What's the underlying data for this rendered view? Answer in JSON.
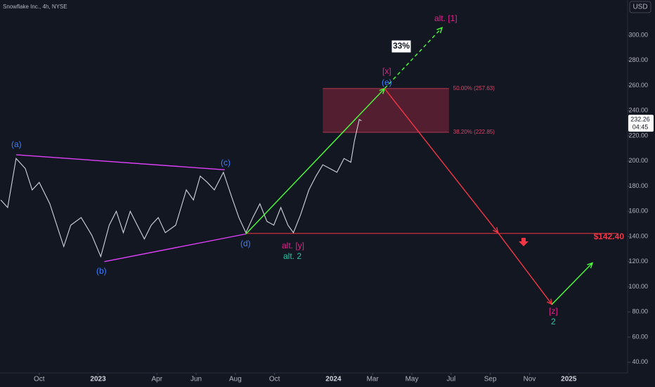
{
  "chart_data": {
    "type": "line",
    "title": "Snowflake Inc., 4h, NYSE",
    "currency": "USD",
    "color": "#d1d4dc",
    "x": [
      -1.96,
      -1.61,
      -1.18,
      -0.71,
      -0.36,
      0,
      0.54,
      1.25,
      1.61,
      2.14,
      2.68,
      3.14,
      3.57,
      3.93,
      4.29,
      4.64,
      5,
      5.36,
      5.71,
      6.07,
      6.43,
      6.96,
      7.5,
      7.86,
      8.21,
      8.57,
      8.93,
      9.39,
      9.82,
      10.18,
      10.54,
      10.89,
      11.25,
      11.61,
      11.96,
      12.32,
      12.68,
      12.96,
      13.32,
      13.75,
      14.11,
      14.46,
      14.82,
      15.18,
      15.54,
      15.89,
      16.07,
      16.32,
      16.43
    ],
    "values": [
      169,
      163,
      202,
      194,
      177,
      183,
      166,
      132,
      149,
      155,
      141,
      124,
      149,
      160,
      143,
      160,
      149,
      138,
      149,
      155,
      143,
      149,
      177,
      169,
      188,
      183,
      177,
      191,
      171,
      155,
      143,
      155,
      166,
      152,
      149,
      163,
      149,
      143,
      157,
      177,
      188,
      197,
      194,
      191,
      202,
      199,
      216,
      233,
      232
    ],
    "xlim": [
      -2,
      30
    ],
    "xticks": [
      {
        "value": 0,
        "label": "Oct"
      },
      {
        "value": 3,
        "label": "2023"
      },
      {
        "value": 6,
        "label": "Apr"
      },
      {
        "value": 8,
        "label": "Jun"
      },
      {
        "value": 10,
        "label": "Aug"
      },
      {
        "value": 12,
        "label": "Oct"
      },
      {
        "value": 15,
        "label": "2024"
      },
      {
        "value": 17,
        "label": "Mar"
      },
      {
        "value": 19,
        "label": "May"
      },
      {
        "value": 21,
        "label": "Jul"
      },
      {
        "value": 23,
        "label": "Sep"
      },
      {
        "value": 25,
        "label": "Nov"
      },
      {
        "value": 27,
        "label": "2025"
      }
    ],
    "ylim": [
      31.5,
      328
    ],
    "yticks": [
      {
        "value": 40,
        "label": "40.00"
      },
      {
        "value": 60,
        "label": "60.00"
      },
      {
        "value": 80,
        "label": "80.00"
      },
      {
        "value": 100,
        "label": "100.00"
      },
      {
        "value": 120,
        "label": "120.00"
      },
      {
        "value": 140,
        "label": "140.00"
      },
      {
        "value": 160,
        "label": "160.00"
      },
      {
        "value": 180,
        "label": "180.00"
      },
      {
        "value": 200,
        "label": "200.00"
      },
      {
        "value": 220,
        "label": "220.00"
      },
      {
        "value": 240,
        "label": "240.00"
      },
      {
        "value": 260,
        "label": "260.00"
      },
      {
        "value": 280,
        "label": "280.00"
      },
      {
        "value": 300,
        "label": "300.00"
      }
    ],
    "last_price": {
      "value": 232.26,
      "label": "232.26",
      "countdown": "04:45"
    },
    "fib_zone": {
      "x": [
        14.46,
        20.89
      ],
      "color": "#6b2137",
      "levels": [
        {
          "value": 257.63,
          "label": "50.00% (257.63)"
        },
        {
          "value": 222.85,
          "label": "38.20% (222.85)"
        }
      ]
    },
    "target": {
      "value": 142.4,
      "label": "$142.40",
      "x": [
        10.54,
        29.46
      ],
      "color": "#f23645"
    },
    "waves": [
      {
        "color": "#e040fb",
        "dashed": false,
        "x": [
          -1.18,
          9.46
        ],
        "values": [
          205,
          193
        ]
      },
      {
        "color": "#e040fb",
        "dashed": false,
        "x": [
          3.32,
          10.54
        ],
        "values": [
          120,
          142
        ]
      },
      {
        "color": "#4cff3b",
        "dashed": false,
        "x": [
          10.54,
          17.61
        ],
        "values": [
          142,
          257.6
        ]
      },
      {
        "color": "#4cff3b",
        "dashed": true,
        "x": [
          17.61,
          20.54
        ],
        "values": [
          257.6,
          306
        ]
      },
      {
        "color": "#f23645",
        "dashed": false,
        "x": [
          17.61,
          23.39,
          26.14
        ],
        "values": [
          257.6,
          143,
          86
        ]
      },
      {
        "color": "#4cff3b",
        "dashed": false,
        "x": [
          26.14,
          28.21
        ],
        "values": [
          86,
          119
        ]
      }
    ],
    "labels": {
      "a": "(a)",
      "b": "(b)",
      "c": "(c)",
      "d": "(d)",
      "e": "(e)",
      "x": "[x]",
      "alt1": "alt. [1]",
      "pct": "33%",
      "alty": "alt. [y]",
      "alt2": "alt. 2",
      "z": "[z]",
      "two": "2"
    }
  }
}
